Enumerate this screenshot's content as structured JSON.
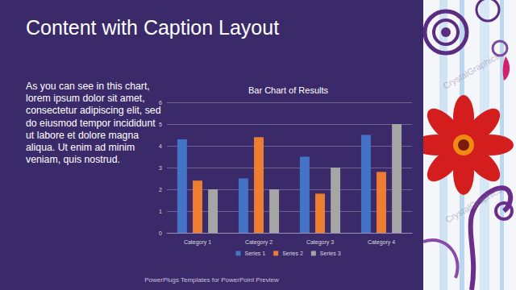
{
  "slide": {
    "title": "Content with Caption Layout",
    "caption": "As you can see in this chart, lorem ipsum dolor sit amet, consectetur adipiscing elit, sed do eiusmod tempor incididunt ut labore et dolore magna aliqua. Ut enim ad minim veniam, quis nostrud.",
    "footer": "PowerPlugs Templates for PowerPoint Preview",
    "watermark": "CrystalGraphics"
  },
  "chart_data": {
    "type": "bar",
    "title": "Bar Chart of Results",
    "categories": [
      "Category 1",
      "Category 2",
      "Category 3",
      "Category 4"
    ],
    "series": [
      {
        "name": "Series 1",
        "color": "#4472c4",
        "values": [
          4.3,
          2.5,
          3.5,
          4.5
        ]
      },
      {
        "name": "Series 2",
        "color": "#ed7d31",
        "values": [
          2.4,
          4.4,
          1.8,
          2.8
        ]
      },
      {
        "name": "Series 3",
        "color": "#a5a5a5",
        "values": [
          2,
          2,
          3,
          5
        ]
      }
    ],
    "ylim": [
      0,
      6
    ],
    "yticks": [
      0,
      1,
      2,
      3,
      4,
      5,
      6
    ],
    "grid": true,
    "legend": "bottom"
  }
}
